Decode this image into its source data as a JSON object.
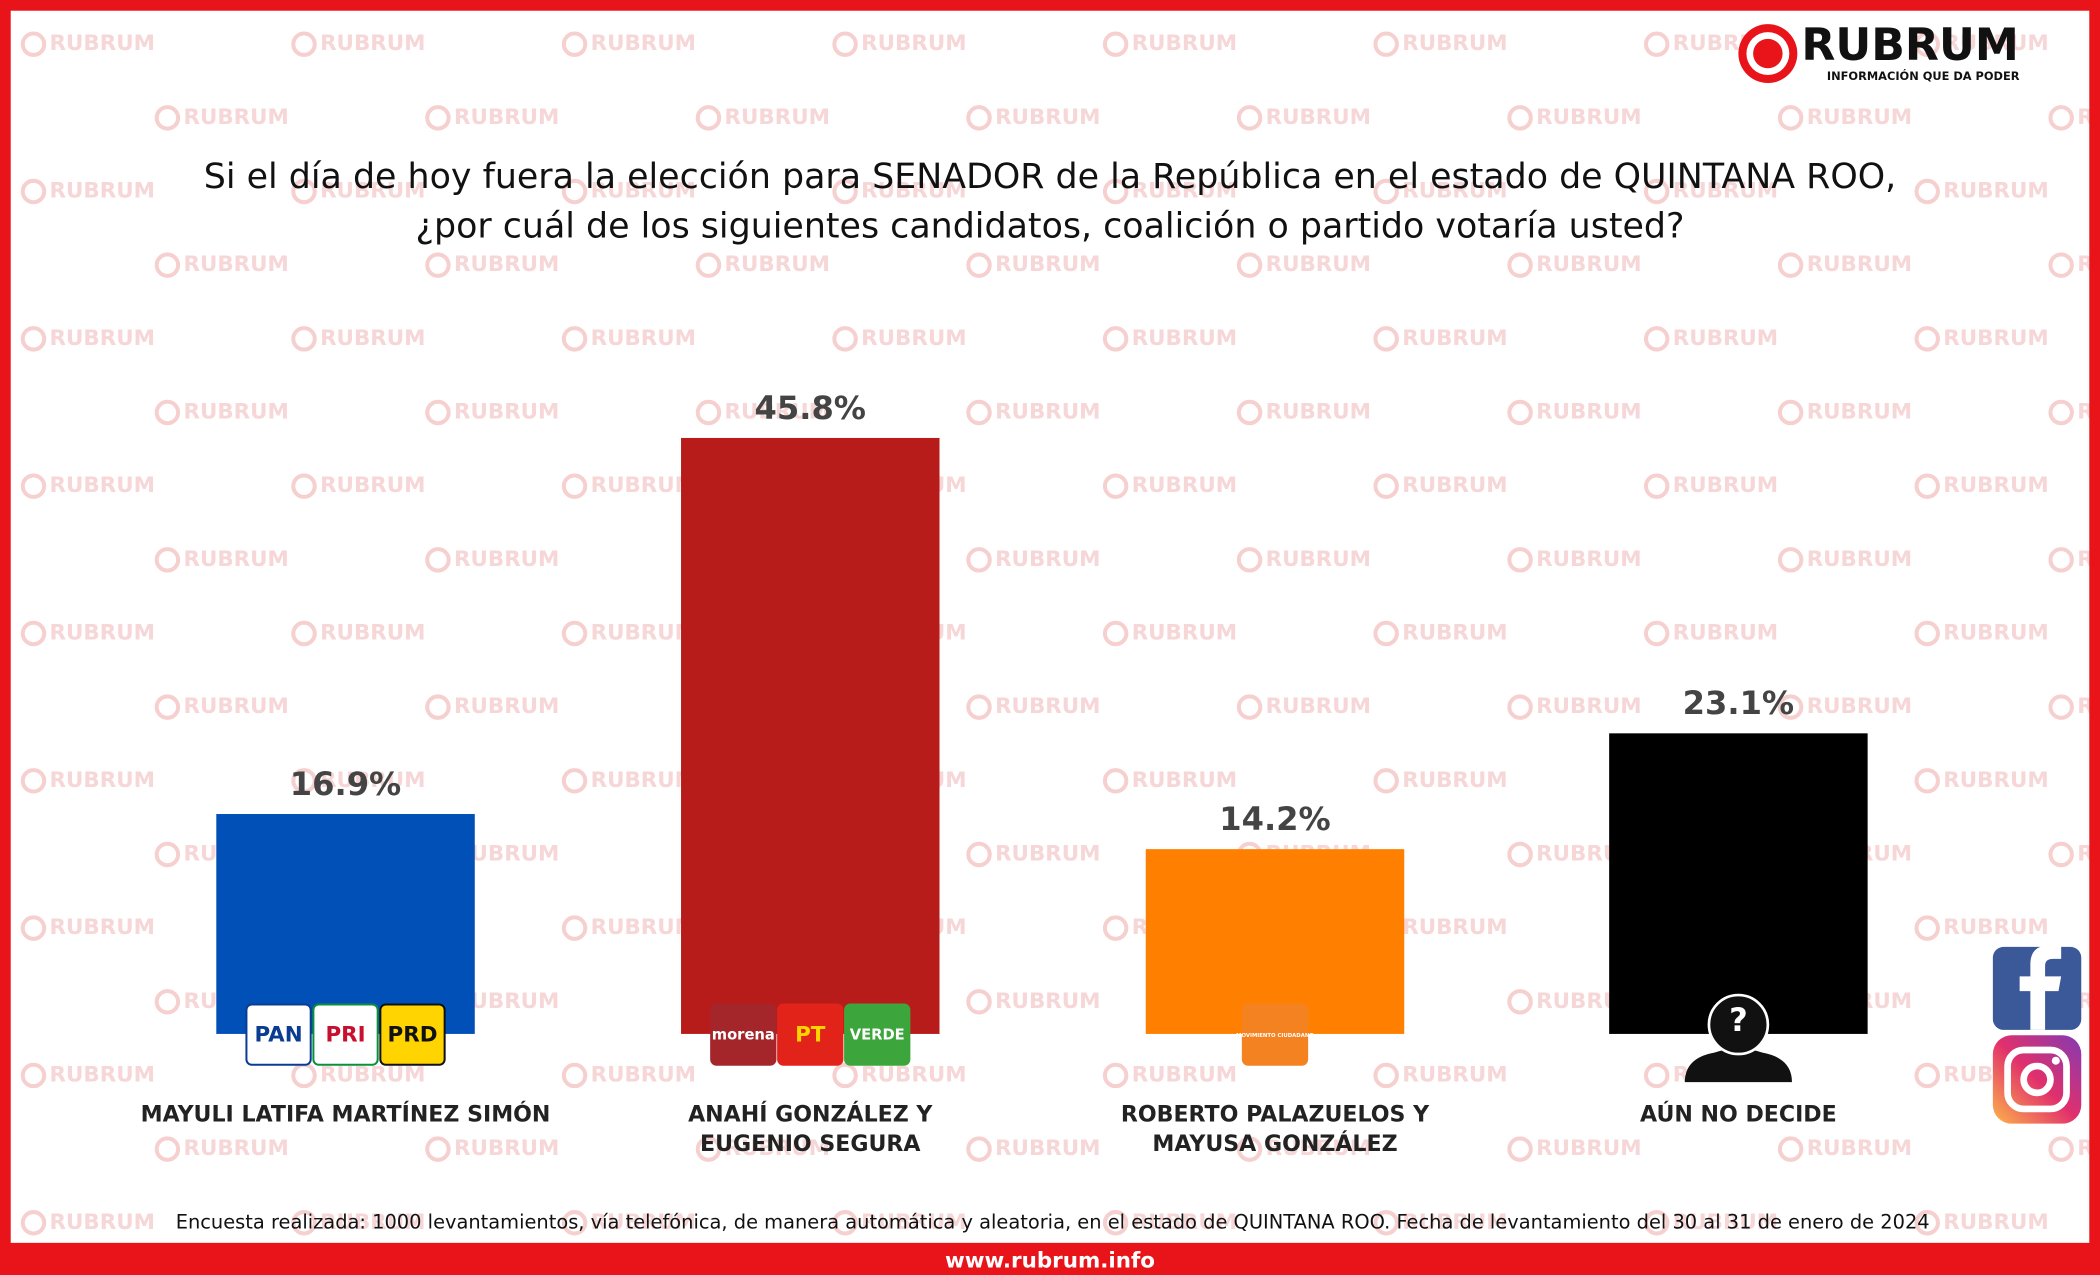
{
  "logo": {
    "name": "RUBRUM",
    "tagline": "INFORMACIÓN QUE DA PODER"
  },
  "chart_data": {
    "type": "bar",
    "title": [
      "Si el día de hoy fuera la elección para SENADOR de la República en el estado de QUINTANA ROO,",
      "¿por cuál de los siguientes candidatos, coalición o partido votaría usted?"
    ],
    "categories": [
      [
        "MAYULI LATIFA MARTÍNEZ SIMÓN"
      ],
      [
        "ANAHÍ GONZÁLEZ Y",
        "EUGENIO SEGURA"
      ],
      [
        "ROBERTO PALAZUELOS Y",
        "MAYUSA GONZÁLEZ"
      ],
      [
        "AÚN NO DECIDE"
      ]
    ],
    "values": [
      16.9,
      45.8,
      14.2,
      23.1
    ],
    "value_labels": [
      "16.9%",
      "45.8%",
      "14.2%",
      "23.1%"
    ],
    "colors": [
      "#0050b8",
      "#b71c1a",
      "#ff8000",
      "#000000"
    ]
  },
  "party_logos": [
    [
      "PAN",
      "PRI",
      "PRD"
    ],
    [
      "morena",
      "PT",
      "VERDE"
    ],
    [
      "MOVIMIENTO CIUDADANO"
    ],
    [
      "?"
    ]
  ],
  "footnote": "Encuesta realizada: 1000 levantamientos, vía telefónica, de manera automática y aleatoria, en el estado de QUINTANA ROO. Fecha de levantamiento del 30 al 31 de enero de 2024",
  "url": "www.rubrum.info"
}
